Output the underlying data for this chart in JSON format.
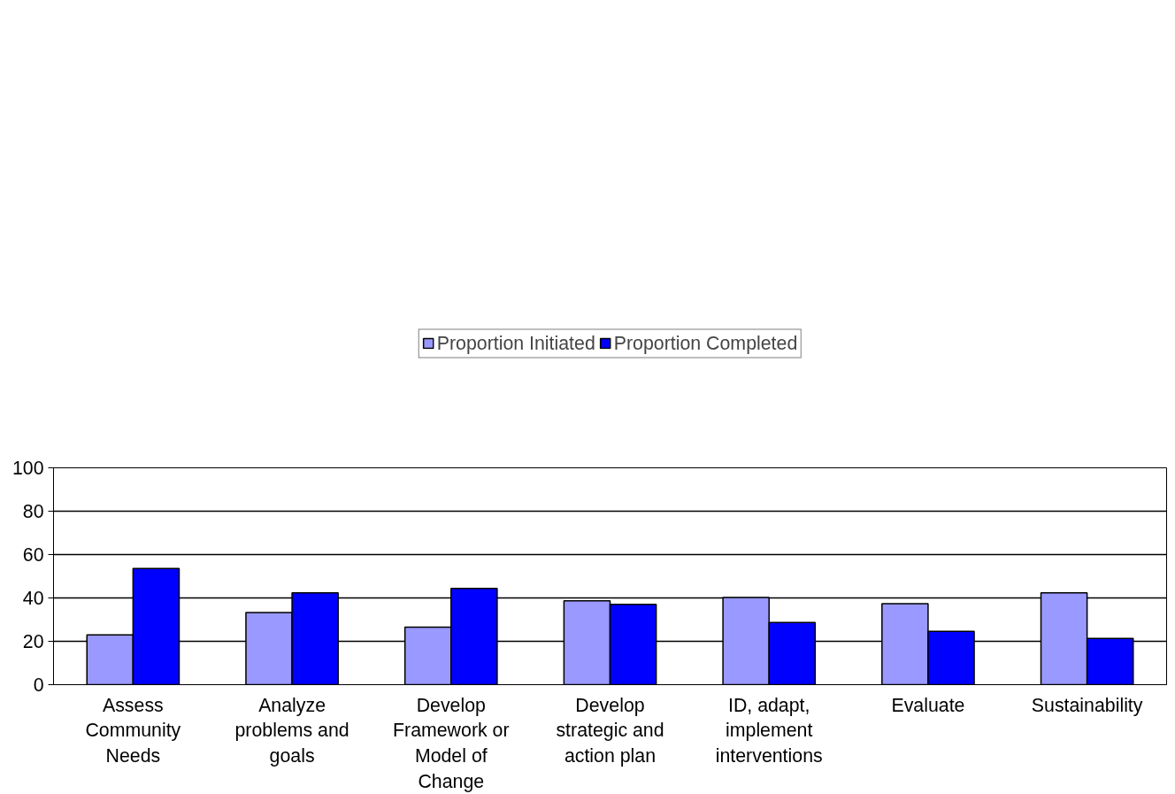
{
  "chart_data": {
    "type": "bar",
    "categories": [
      "Assess Community Needs",
      "Analyze problems and goals",
      "Develop Framework or Model of Change",
      "Develop strategic and action plan",
      "ID, adapt, implement interventions",
      "Evaluate",
      "Sustainability"
    ],
    "series": [
      {
        "name": "Proportion Initiated",
        "color": "#9999ff",
        "values": [
          23,
          33.3,
          26.5,
          38.7,
          40.2,
          37.3,
          42.3
        ]
      },
      {
        "name": "Proportion Completed",
        "color": "#0000ff",
        "values": [
          53.6,
          42.3,
          44.4,
          37,
          28.7,
          24.6,
          21.3
        ]
      }
    ],
    "ylim": [
      0,
      100
    ],
    "yticks": [
      0,
      20,
      40,
      60,
      80,
      100
    ],
    "grid": "y",
    "legend": "top"
  }
}
